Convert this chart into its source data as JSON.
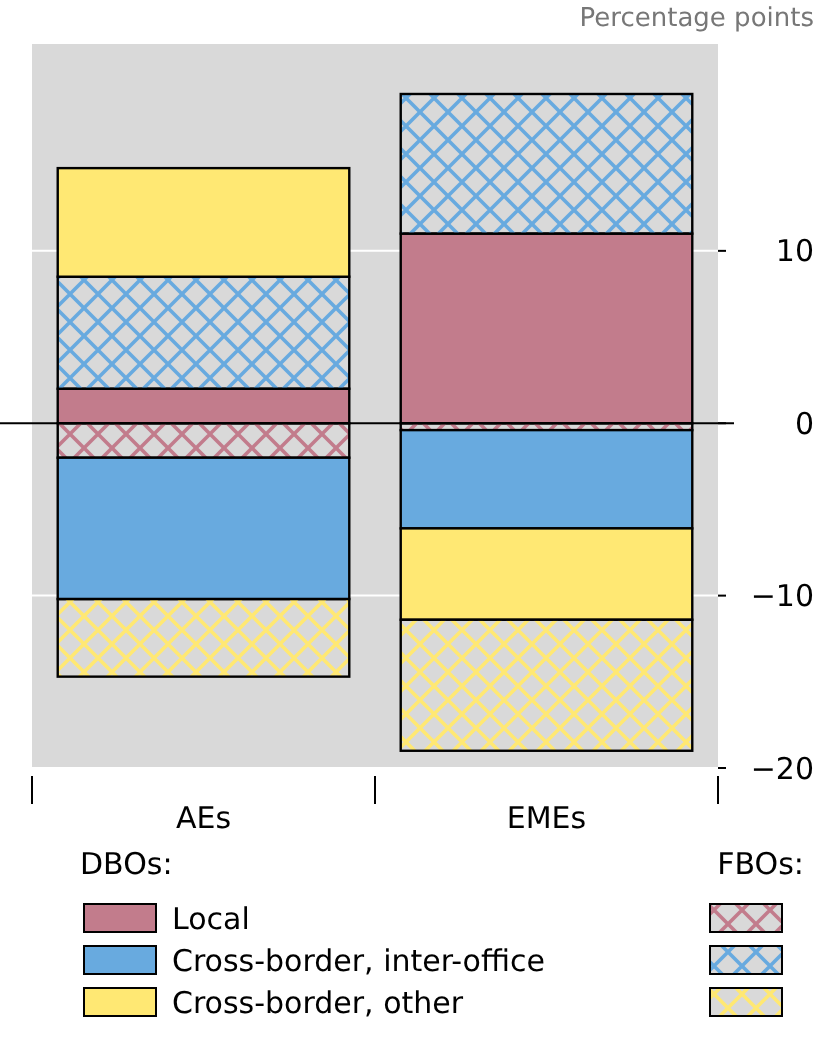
{
  "chart_data": {
    "type": "bar",
    "stacked": true,
    "ylabel": "Percentage points",
    "categories": [
      "AEs",
      "EMEs"
    ],
    "ylim": [
      -20,
      22
    ],
    "yticks": [
      -20,
      -10,
      0,
      10
    ],
    "grid": "y",
    "legend": "bottom",
    "annotations": [
      "DBOs:",
      "FBOs:"
    ],
    "series": [
      {
        "name": "Local",
        "color": "#c27c8c",
        "values": [
          2.0,
          11.0
        ]
      },
      {
        "color": "#c27c8c",
        "values": [
          -2.0,
          -0.4
        ]
      },
      {
        "name": "Cross-border, inter-office",
        "color": "#68aadf",
        "values": [
          -8.2,
          -5.7
        ]
      },
      {
        "color": "#68aadf",
        "values": [
          6.5,
          8.1
        ]
      },
      {
        "name": "Cross-border, other",
        "color": "#ffe873",
        "values": [
          6.3,
          -5.3
        ]
      },
      {
        "color": "#ffe873",
        "values": [
          -4.5,
          -7.6
        ]
      }
    ]
  }
}
